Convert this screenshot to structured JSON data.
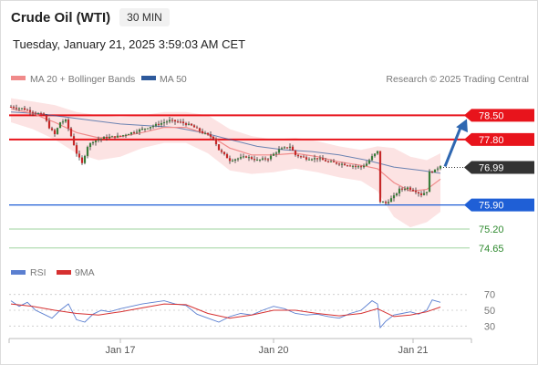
{
  "header": {
    "instrument": "Crude Oil (WTI)",
    "interval": "30 MIN",
    "timestamp": "Tuesday, January 21, 2025 3:59:03 AM CET"
  },
  "legend": {
    "ma20": "MA 20 + Bollinger Bands",
    "ma50": "MA 50",
    "credit": "Research © 2025 Trading Central",
    "rsi": "RSI",
    "ma9": "9MA"
  },
  "colors": {
    "resistance": "#e8141c",
    "support": "#1f5fd6",
    "target": "#3ea33e",
    "current": "#333333",
    "arrow": "#2e67b1",
    "ma20": "#f08a8a",
    "ma50": "#2e5a9c",
    "bands": "#fbd9d9",
    "up_candle": "#3a7d3a",
    "down_candle": "#c62828",
    "rsi": "#5b7fd0",
    "rsi_ma": "#d63030"
  },
  "chart_data": {
    "type": "candlestick",
    "ylim": [
      74.3,
      79.2
    ],
    "x_ticks": [
      "Jan 17",
      "Jan 20",
      "Jan 21"
    ],
    "levels": [
      {
        "value": 78.5,
        "label": "78.50",
        "kind": "resistance",
        "style": "box"
      },
      {
        "value": 77.8,
        "label": "77.80",
        "kind": "resistance",
        "style": "box"
      },
      {
        "value": 76.99,
        "label": "76.99",
        "kind": "current",
        "style": "box"
      },
      {
        "value": 75.9,
        "label": "75.90",
        "kind": "support",
        "style": "box"
      },
      {
        "value": 75.2,
        "label": "75.20",
        "kind": "target",
        "style": "text"
      },
      {
        "value": 74.65,
        "label": "74.65",
        "kind": "target",
        "style": "text"
      }
    ],
    "price_path": [
      [
        0,
        78.75
      ],
      [
        4,
        78.7
      ],
      [
        8,
        78.6
      ],
      [
        12,
        78.5
      ],
      [
        14,
        78.15
      ],
      [
        16,
        77.95
      ],
      [
        18,
        78.3
      ],
      [
        20,
        78.35
      ],
      [
        22,
        77.9
      ],
      [
        24,
        77.4
      ],
      [
        26,
        77.1
      ],
      [
        28,
        77.6
      ],
      [
        30,
        77.75
      ],
      [
        34,
        77.85
      ],
      [
        40,
        77.9
      ],
      [
        46,
        78.05
      ],
      [
        50,
        78.15
      ],
      [
        54,
        78.25
      ],
      [
        58,
        78.35
      ],
      [
        62,
        78.3
      ],
      [
        66,
        78.2
      ],
      [
        70,
        78.0
      ],
      [
        74,
        77.85
      ],
      [
        76,
        77.5
      ],
      [
        80,
        77.2
      ],
      [
        86,
        77.3
      ],
      [
        90,
        77.2
      ],
      [
        94,
        77.25
      ],
      [
        98,
        77.5
      ],
      [
        102,
        77.6
      ],
      [
        104,
        77.35
      ],
      [
        108,
        77.25
      ],
      [
        112,
        77.25
      ],
      [
        116,
        77.15
      ],
      [
        120,
        77.1
      ],
      [
        124,
        77.05
      ],
      [
        128,
        77.0
      ],
      [
        130,
        77.1
      ],
      [
        132,
        77.3
      ],
      [
        134,
        77.45
      ],
      [
        135,
        76.0
      ],
      [
        137,
        75.95
      ],
      [
        140,
        76.15
      ],
      [
        142,
        76.35
      ],
      [
        145,
        76.4
      ],
      [
        148,
        76.3
      ],
      [
        150,
        76.2
      ],
      [
        152,
        76.3
      ],
      [
        153,
        76.85
      ],
      [
        155,
        76.9
      ],
      [
        157,
        77.05
      ]
    ],
    "ma20_path": [
      [
        0,
        78.7
      ],
      [
        8,
        78.55
      ],
      [
        16,
        78.3
      ],
      [
        24,
        78.0
      ],
      [
        32,
        77.85
      ],
      [
        40,
        77.88
      ],
      [
        48,
        78.0
      ],
      [
        56,
        78.15
      ],
      [
        64,
        78.15
      ],
      [
        72,
        77.95
      ],
      [
        80,
        77.55
      ],
      [
        88,
        77.35
      ],
      [
        96,
        77.35
      ],
      [
        104,
        77.4
      ],
      [
        112,
        77.3
      ],
      [
        120,
        77.15
      ],
      [
        128,
        77.05
      ],
      [
        134,
        76.95
      ],
      [
        140,
        76.55
      ],
      [
        146,
        76.3
      ],
      [
        152,
        76.35
      ],
      [
        157,
        76.65
      ]
    ],
    "ma50_path": [
      [
        0,
        78.6
      ],
      [
        10,
        78.55
      ],
      [
        20,
        78.45
      ],
      [
        30,
        78.35
      ],
      [
        40,
        78.25
      ],
      [
        50,
        78.2
      ],
      [
        60,
        78.15
      ],
      [
        70,
        78.0
      ],
      [
        80,
        77.8
      ],
      [
        90,
        77.6
      ],
      [
        100,
        77.5
      ],
      [
        110,
        77.45
      ],
      [
        120,
        77.35
      ],
      [
        130,
        77.2
      ],
      [
        140,
        77.0
      ],
      [
        150,
        76.9
      ],
      [
        157,
        76.82
      ]
    ],
    "band_upper": [
      [
        0,
        79.0
      ],
      [
        8,
        78.9
      ],
      [
        16,
        78.8
      ],
      [
        24,
        78.6
      ],
      [
        32,
        78.5
      ],
      [
        40,
        78.45
      ],
      [
        48,
        78.5
      ],
      [
        56,
        78.6
      ],
      [
        64,
        78.6
      ],
      [
        72,
        78.5
      ],
      [
        80,
        78.1
      ],
      [
        88,
        77.9
      ],
      [
        96,
        77.8
      ],
      [
        104,
        77.85
      ],
      [
        112,
        77.75
      ],
      [
        120,
        77.6
      ],
      [
        128,
        77.5
      ],
      [
        134,
        77.6
      ],
      [
        140,
        77.55
      ],
      [
        146,
        77.3
      ],
      [
        152,
        77.2
      ],
      [
        157,
        77.4
      ]
    ],
    "band_lower": [
      [
        0,
        78.3
      ],
      [
        8,
        78.1
      ],
      [
        16,
        77.8
      ],
      [
        24,
        77.4
      ],
      [
        32,
        77.2
      ],
      [
        40,
        77.3
      ],
      [
        48,
        77.55
      ],
      [
        56,
        77.7
      ],
      [
        64,
        77.7
      ],
      [
        72,
        77.4
      ],
      [
        80,
        76.9
      ],
      [
        88,
        76.8
      ],
      [
        96,
        76.85
      ],
      [
        104,
        76.95
      ],
      [
        112,
        76.85
      ],
      [
        120,
        76.7
      ],
      [
        128,
        76.6
      ],
      [
        134,
        76.3
      ],
      [
        140,
        75.55
      ],
      [
        146,
        75.25
      ],
      [
        152,
        75.4
      ],
      [
        157,
        75.7
      ]
    ],
    "forecast": {
      "from": 76.99,
      "to": 78.5
    },
    "rsi": {
      "ylim": [
        20,
        80
      ],
      "ticks": [
        70,
        50,
        30
      ],
      "path": [
        [
          0,
          62
        ],
        [
          3,
          55
        ],
        [
          6,
          60
        ],
        [
          9,
          50
        ],
        [
          12,
          45
        ],
        [
          15,
          40
        ],
        [
          18,
          50
        ],
        [
          21,
          58
        ],
        [
          24,
          38
        ],
        [
          27,
          35
        ],
        [
          30,
          45
        ],
        [
          33,
          50
        ],
        [
          36,
          48
        ],
        [
          40,
          52
        ],
        [
          44,
          55
        ],
        [
          48,
          58
        ],
        [
          52,
          60
        ],
        [
          56,
          62
        ],
        [
          60,
          58
        ],
        [
          64,
          56
        ],
        [
          68,
          45
        ],
        [
          72,
          40
        ],
        [
          76,
          35
        ],
        [
          80,
          42
        ],
        [
          84,
          46
        ],
        [
          88,
          44
        ],
        [
          92,
          50
        ],
        [
          96,
          55
        ],
        [
          100,
          52
        ],
        [
          104,
          46
        ],
        [
          108,
          44
        ],
        [
          112,
          45
        ],
        [
          116,
          42
        ],
        [
          120,
          40
        ],
        [
          124,
          46
        ],
        [
          128,
          50
        ],
        [
          132,
          62
        ],
        [
          134,
          58
        ],
        [
          135,
          28
        ],
        [
          137,
          36
        ],
        [
          140,
          44
        ],
        [
          143,
          46
        ],
        [
          146,
          48
        ],
        [
          149,
          45
        ],
        [
          152,
          50
        ],
        [
          154,
          63
        ],
        [
          157,
          60
        ]
      ],
      "ma_path": [
        [
          0,
          58
        ],
        [
          8,
          55
        ],
        [
          16,
          50
        ],
        [
          24,
          46
        ],
        [
          32,
          44
        ],
        [
          40,
          48
        ],
        [
          48,
          53
        ],
        [
          56,
          58
        ],
        [
          64,
          57
        ],
        [
          72,
          46
        ],
        [
          80,
          40
        ],
        [
          88,
          44
        ],
        [
          96,
          50
        ],
        [
          104,
          50
        ],
        [
          112,
          46
        ],
        [
          120,
          43
        ],
        [
          128,
          46
        ],
        [
          134,
          52
        ],
        [
          140,
          42
        ],
        [
          146,
          44
        ],
        [
          152,
          48
        ],
        [
          157,
          54
        ]
      ]
    }
  }
}
